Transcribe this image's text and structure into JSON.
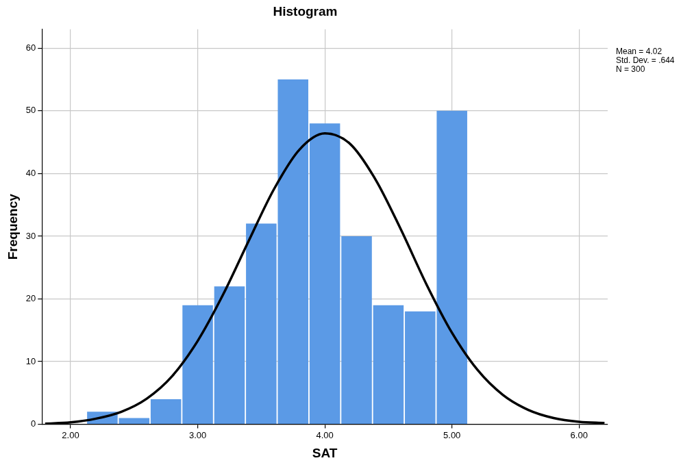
{
  "chart_data": {
    "type": "histogram",
    "title": "Histogram",
    "xlabel": "SAT",
    "ylabel": "Frequency",
    "bins": [
      2.125,
      2.375,
      2.625,
      2.875,
      3.125,
      3.375,
      3.625,
      3.875,
      4.125,
      4.375,
      4.625,
      4.875,
      5.125
    ],
    "values": [
      2,
      1,
      4,
      19,
      22,
      32,
      55,
      48,
      30,
      19,
      18,
      50
    ],
    "color": "#5b9ae6",
    "series": [
      {
        "type": "line",
        "color": "#000000",
        "x": [
          1.8,
          2.0,
          2.2,
          2.4,
          2.6,
          2.8,
          3.0,
          3.2,
          3.4,
          3.6,
          3.8,
          4.0,
          4.2,
          4.4,
          4.6,
          4.8,
          5.0,
          5.2,
          5.4,
          5.6,
          5.8,
          6.0,
          6.2
        ],
        "values": [
          0.1,
          0.3,
          0.9,
          2.0,
          4.1,
          7.7,
          13.3,
          20.7,
          29.2,
          37.5,
          43.8,
          46.4,
          44.7,
          39.0,
          31.0,
          22.3,
          14.6,
          8.7,
          4.7,
          2.3,
          1.0,
          0.4,
          0.2
        ]
      }
    ],
    "xlim": [
      1.775,
      6.225
    ],
    "xticks": [
      {
        "value": 2,
        "label": "2.00"
      },
      {
        "value": 3,
        "label": "3.00"
      },
      {
        "value": 4,
        "label": "4.00"
      },
      {
        "value": 5,
        "label": "5.00"
      },
      {
        "value": 6,
        "label": "6.00"
      }
    ],
    "ylim": [
      0,
      63
    ],
    "yticks": [
      0,
      10,
      20,
      30,
      40,
      50,
      60
    ],
    "grid": true,
    "annotations": [
      "Mean = 4.02",
      "Std. Dev. = .644",
      "N = 300"
    ]
  }
}
